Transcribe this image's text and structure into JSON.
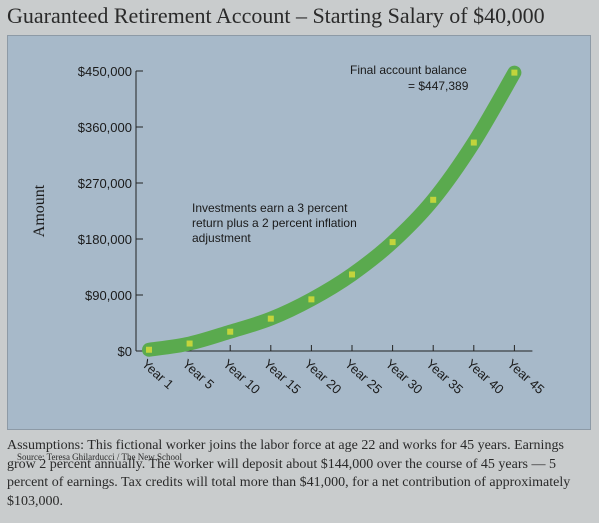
{
  "title": "Guaranteed Retirement Account – Starting Salary of $40,000",
  "source": "Source: Teresa Ghilarducci / The New School",
  "assumptions": "Assumptions: This fictional worker joins the labor force at age 22 and works for 45 years. Earnings grow 2 percent annually. The worker will deposit about $144,000 over the course of 45 years — 5 percent of earnings. Tax credits will total more than $41,000, for a net contribution of approximately $103,000.",
  "colors": {
    "plot_background": "#a7b9c9",
    "curve": "#5aaa4e",
    "marker": "#c3d43c",
    "page_background": "#c9cccd"
  },
  "chart_data": {
    "type": "line",
    "ylabel": "Amount",
    "ylim": [
      0,
      450000
    ],
    "yticks": [
      0,
      90000,
      180000,
      270000,
      360000,
      450000
    ],
    "ytick_labels": [
      "$0",
      "$90,000",
      "$180,000",
      "$270,000",
      "$360,000",
      "$450,000"
    ],
    "categories": [
      "Year 1",
      "Year 5",
      "Year 10",
      "Year 15",
      "Year 20",
      "Year 25",
      "Year 30",
      "Year 35",
      "Year 40",
      "Year 45"
    ],
    "values": [
      2000,
      12000,
      31000,
      52000,
      83000,
      123000,
      175000,
      243000,
      335000,
      447389
    ],
    "annotations": [
      {
        "lines": [
          "Final account balance",
          "= $447,389"
        ]
      },
      {
        "lines": [
          "Investments earn a 3 percent",
          "return plus a 2 percent inflation",
          "adjustment"
        ]
      }
    ]
  }
}
